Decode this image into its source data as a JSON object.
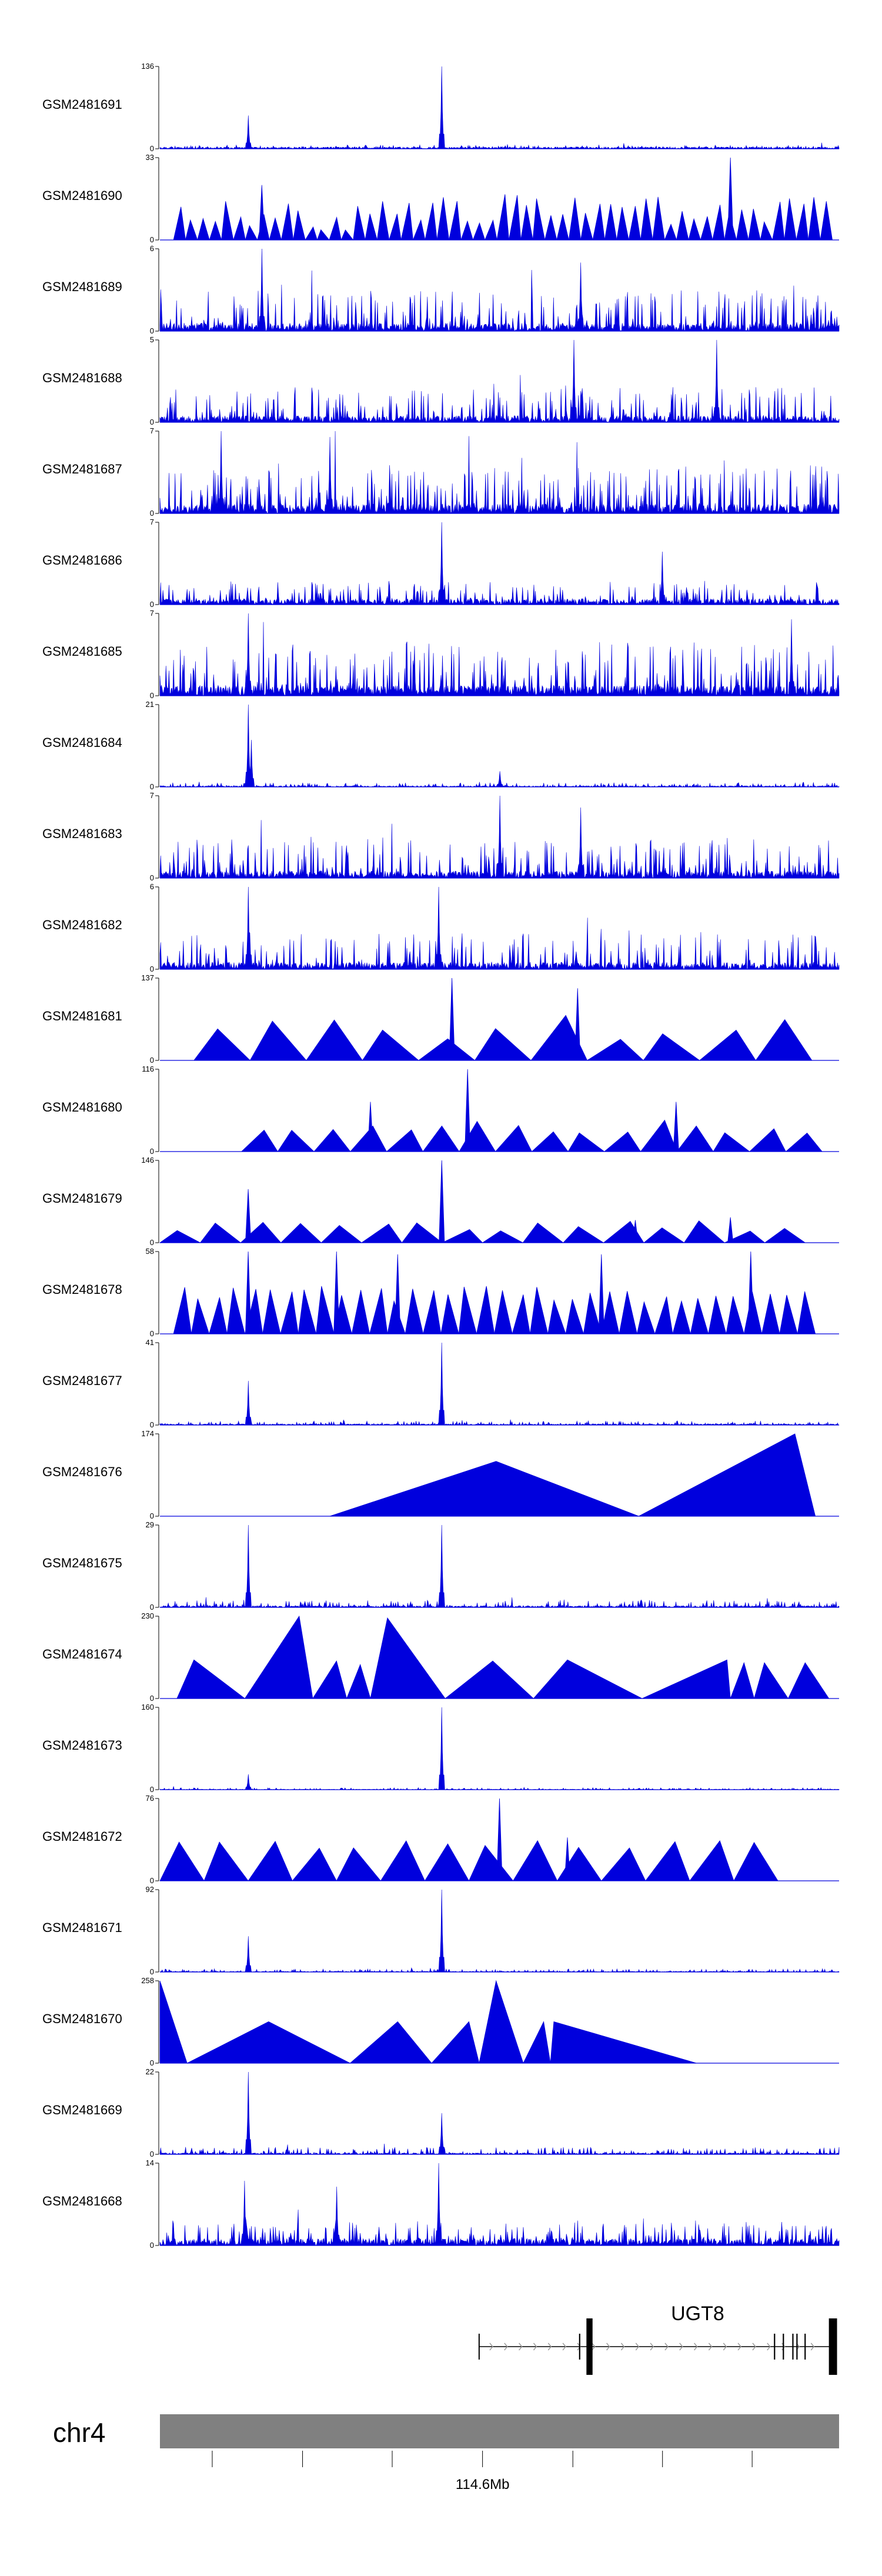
{
  "colors": {
    "signal": "#0000dd",
    "chrom_bar": "#808080",
    "axis": "#000000",
    "gene": "#000000",
    "intron_arrow": "#999999"
  },
  "chart_data": {
    "type": "area",
    "title": "",
    "xlabel": "",
    "ylabel": "",
    "series": [
      {
        "name": "GSM2481691",
        "ymax": 136,
        "style": "noise",
        "base": 3,
        "noise": 4,
        "peaks": [
          [
            0.13,
            55
          ],
          [
            0.415,
            136
          ]
        ]
      },
      {
        "name": "GSM2481690",
        "ymax": 33,
        "style": "triangle",
        "seed": 11,
        "start": 0.02,
        "end": 0.99,
        "tri_count": 55,
        "hmin": 4,
        "hmax": 19,
        "peaks": [
          [
            0.84,
            33
          ],
          [
            0.15,
            22
          ]
        ]
      },
      {
        "name": "GSM2481689",
        "ymax": 6,
        "style": "noise",
        "base": 0.6,
        "noise": 2.6,
        "peaks": [
          [
            0.15,
            6
          ],
          [
            0.62,
            5
          ]
        ]
      },
      {
        "name": "GSM2481688",
        "ymax": 5,
        "style": "noise",
        "base": 0.4,
        "noise": 2.0,
        "peaks": [
          [
            0.61,
            5
          ],
          [
            0.82,
            5
          ]
        ]
      },
      {
        "name": "GSM2481687",
        "ymax": 7,
        "style": "noise",
        "base": 0.8,
        "noise": 3.6,
        "peaks": [
          [
            0.09,
            7
          ],
          [
            0.25,
            6.5
          ]
        ]
      },
      {
        "name": "GSM2481686",
        "ymax": 7,
        "style": "noise",
        "base": 0.5,
        "noise": 1.6,
        "peaks": [
          [
            0.415,
            7
          ],
          [
            0.74,
            4.5
          ]
        ]
      },
      {
        "name": "GSM2481685",
        "ymax": 7,
        "style": "noise",
        "base": 0.9,
        "noise": 3.8,
        "peaks": [
          [
            0.13,
            7
          ],
          [
            0.93,
            6.5
          ]
        ]
      },
      {
        "name": "GSM2481684",
        "ymax": 21,
        "style": "noise",
        "base": 0.3,
        "noise": 0.9,
        "peaks": [
          [
            0.13,
            21
          ],
          [
            0.135,
            12
          ],
          [
            0.5,
            4
          ]
        ]
      },
      {
        "name": "GSM2481683",
        "ymax": 7,
        "style": "noise",
        "base": 0.6,
        "noise": 3.0,
        "peaks": [
          [
            0.5,
            7
          ],
          [
            0.62,
            6
          ]
        ]
      },
      {
        "name": "GSM2481682",
        "ymax": 6,
        "style": "noise",
        "base": 0.5,
        "noise": 2.4,
        "peaks": [
          [
            0.13,
            6
          ],
          [
            0.41,
            6
          ]
        ]
      },
      {
        "name": "GSM2481681",
        "ymax": 137,
        "style": "triangle",
        "seed": 21,
        "start": 0.05,
        "end": 0.96,
        "tri_count": 11,
        "hmin": 35,
        "hmax": 75,
        "peaks": [
          [
            0.43,
            137
          ],
          [
            0.615,
            120
          ]
        ]
      },
      {
        "name": "GSM2481680",
        "ymax": 116,
        "style": "triangle",
        "seed": 31,
        "start": 0.12,
        "end": 0.975,
        "tri_count": 16,
        "hmin": 25,
        "hmax": 45,
        "peaks": [
          [
            0.453,
            116
          ],
          [
            0.31,
            70
          ],
          [
            0.76,
            70
          ]
        ]
      },
      {
        "name": "GSM2481679",
        "ymax": 146,
        "style": "triangle",
        "seed": 41,
        "start": 0.0,
        "end": 0.95,
        "tri_count": 16,
        "hmin": 20,
        "hmax": 40,
        "peaks": [
          [
            0.415,
            146
          ],
          [
            0.13,
            95
          ],
          [
            0.84,
            45
          ],
          [
            0.7,
            40
          ]
        ]
      },
      {
        "name": "GSM2481678",
        "ymax": 58,
        "style": "triangle",
        "seed": 51,
        "start": 0.02,
        "end": 0.965,
        "tri_count": 36,
        "hmin": 22,
        "hmax": 34,
        "peaks": [
          [
            0.13,
            58
          ],
          [
            0.26,
            58
          ],
          [
            0.35,
            56
          ],
          [
            0.65,
            56
          ],
          [
            0.87,
            58
          ]
        ]
      },
      {
        "name": "GSM2481677",
        "ymax": 41,
        "style": "noise",
        "base": 0.6,
        "noise": 1.6,
        "peaks": [
          [
            0.13,
            22
          ],
          [
            0.415,
            41
          ]
        ]
      },
      {
        "name": "GSM2481676",
        "ymax": 174,
        "style": "triangle",
        "seed": 0,
        "start": 0.25,
        "end": 0.965,
        "tri_list": [
          [
            0.25,
            0.495,
            0.705,
            116
          ],
          [
            0.705,
            0.935,
            0.965,
            174
          ]
        ]
      },
      {
        "name": "GSM2481675",
        "ymax": 29,
        "style": "noise",
        "base": 0.6,
        "noise": 2.0,
        "peaks": [
          [
            0.13,
            29
          ],
          [
            0.415,
            29
          ]
        ]
      },
      {
        "name": "GSM2481674",
        "ymax": 230,
        "style": "triangle",
        "seed": 0,
        "start": 0.02,
        "end": 0.985,
        "tri_list": [
          [
            0.025,
            0.05,
            0.125,
            108
          ],
          [
            0.125,
            0.205,
            0.225,
            230
          ],
          [
            0.225,
            0.26,
            0.275,
            105
          ],
          [
            0.275,
            0.295,
            0.31,
            95
          ],
          [
            0.31,
            0.335,
            0.42,
            225
          ],
          [
            0.42,
            0.49,
            0.55,
            105
          ],
          [
            0.55,
            0.6,
            0.71,
            108
          ],
          [
            0.71,
            0.835,
            0.84,
            108
          ],
          [
            0.84,
            0.86,
            0.875,
            100
          ],
          [
            0.875,
            0.89,
            0.925,
            100
          ],
          [
            0.925,
            0.95,
            0.985,
            100
          ]
        ]
      },
      {
        "name": "GSM2481673",
        "ymax": 160,
        "style": "noise",
        "base": 1,
        "noise": 3,
        "peaks": [
          [
            0.13,
            30
          ],
          [
            0.415,
            160
          ]
        ]
      },
      {
        "name": "GSM2481672",
        "ymax": 76,
        "style": "triangle",
        "seed": 61,
        "start": 0.0,
        "end": 0.91,
        "tri_count": 14,
        "hmin": 30,
        "hmax": 38,
        "peaks": [
          [
            0.5,
            76
          ],
          [
            0.6,
            40
          ]
        ]
      },
      {
        "name": "GSM2481671",
        "ymax": 92,
        "style": "noise",
        "base": 0.8,
        "noise": 3,
        "peaks": [
          [
            0.13,
            40
          ],
          [
            0.415,
            92
          ]
        ]
      },
      {
        "name": "GSM2481670",
        "ymax": 258,
        "style": "triangle",
        "seed": 0,
        "start": 0.0,
        "end": 0.79,
        "tri_list": [
          [
            0.0,
            0.0,
            0.04,
            258
          ],
          [
            0.04,
            0.16,
            0.28,
            130
          ],
          [
            0.28,
            0.35,
            0.4,
            130
          ],
          [
            0.4,
            0.455,
            0.47,
            130
          ],
          [
            0.47,
            0.495,
            0.535,
            258
          ],
          [
            0.535,
            0.565,
            0.575,
            130
          ],
          [
            0.575,
            0.58,
            0.79,
            130
          ]
        ]
      },
      {
        "name": "GSM2481669",
        "ymax": 22,
        "style": "noise",
        "base": 0.4,
        "noise": 1.6,
        "peaks": [
          [
            0.13,
            22
          ],
          [
            0.415,
            11
          ]
        ]
      },
      {
        "name": "GSM2481668",
        "ymax": 14,
        "style": "noise",
        "base": 1.2,
        "noise": 3.2,
        "peaks": [
          [
            0.41,
            14
          ],
          [
            0.26,
            10
          ],
          [
            0.125,
            11
          ]
        ]
      }
    ],
    "gene": {
      "name": "UGT8",
      "tx_start": 0.47,
      "tx_end": 0.995,
      "exons": [
        [
          0.628,
          0.637
        ],
        [
          0.985,
          0.997
        ]
      ],
      "thin_marks": [
        0.618,
        0.905,
        0.918,
        0.932,
        0.938,
        0.95
      ]
    },
    "chromosome": {
      "name": "chr4",
      "ticks": [
        0.077,
        0.21,
        0.342,
        0.475,
        0.608,
        0.74,
        0.872
      ],
      "tick_labels": [
        {
          "index": 3,
          "label": "114.6Mb"
        }
      ]
    }
  }
}
